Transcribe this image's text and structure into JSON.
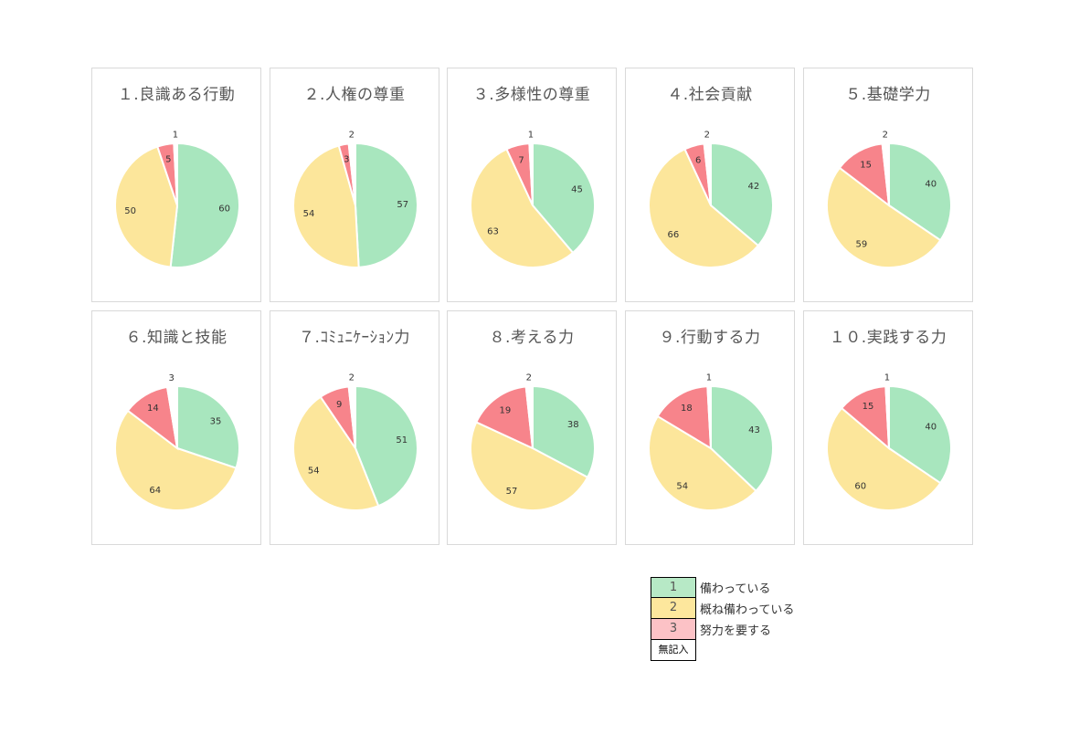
{
  "colors": {
    "s1": "#a8e6be",
    "s2": "#fce69b",
    "s3": "#f7848b",
    "s4": "#ffffff"
  },
  "chart_data": [
    {
      "type": "pie",
      "title": "１.良識ある行動",
      "values": [
        60,
        50,
        5,
        1
      ]
    },
    {
      "type": "pie",
      "title": "２.人権の尊重",
      "values": [
        57,
        54,
        3,
        2
      ]
    },
    {
      "type": "pie",
      "title": "３.多様性の尊重",
      "values": [
        45,
        63,
        7,
        1
      ]
    },
    {
      "type": "pie",
      "title": "４.社会貢献",
      "values": [
        42,
        66,
        6,
        2
      ]
    },
    {
      "type": "pie",
      "title": "５.基礎学力",
      "values": [
        40,
        59,
        15,
        2
      ]
    },
    {
      "type": "pie",
      "title": "６.知識と技能",
      "values": [
        35,
        64,
        14,
        3
      ]
    },
    {
      "type": "pie",
      "title": "７.ｺﾐｭﾆｹｰｼｮﾝ力",
      "values": [
        51,
        54,
        9,
        2
      ]
    },
    {
      "type": "pie",
      "title": "８.考える力",
      "values": [
        38,
        57,
        19,
        2
      ]
    },
    {
      "type": "pie",
      "title": "９.行動する力",
      "values": [
        43,
        54,
        18,
        1
      ]
    },
    {
      "type": "pie",
      "title": "１０.実践する力",
      "values": [
        40,
        60,
        15,
        1
      ]
    }
  ],
  "legend": [
    {
      "key": "1",
      "label": "備わっている"
    },
    {
      "key": "2",
      "label": "概ね備わっている"
    },
    {
      "key": "3",
      "label": "努力を要する"
    },
    {
      "key": "無記入",
      "label": ""
    }
  ]
}
